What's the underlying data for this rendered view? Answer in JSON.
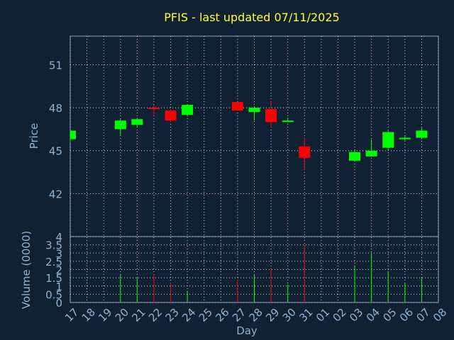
{
  "chart_data": {
    "type": "candlestick",
    "title": "PFIS - last updated 07/11/2025",
    "xlabel": "Day",
    "price_panel": {
      "ylabel": "Price",
      "ylim": [
        39,
        53
      ],
      "yticks": [
        42,
        45,
        48,
        51
      ]
    },
    "volume_panel": {
      "ylabel": "Volume (0000)",
      "ylim": [
        0,
        4
      ],
      "yticks": [
        0,
        0.5,
        1,
        1.5,
        2,
        2.5,
        3,
        3.5,
        4
      ],
      "ytick_labels": [
        "0",
        "0.5",
        "1",
        "1.5",
        "2",
        "2.5",
        "3",
        "3.5",
        "4"
      ]
    },
    "x_tick_labels": [
      "17",
      "18",
      "19",
      "20",
      "21",
      "22",
      "23",
      "24",
      "25",
      "26",
      "27",
      "28",
      "29",
      "30",
      "31",
      "01",
      "02",
      "03",
      "04",
      "05",
      "06",
      "07",
      "08"
    ],
    "colors": {
      "up": "#00ff00",
      "down": "#ff0000",
      "background": "#0f2133"
    },
    "candles": [
      {
        "day": "17",
        "open": 45.8,
        "high": 46.4,
        "low": 45.6,
        "close": 46.4,
        "volume": 0.0
      },
      {
        "day": "20",
        "open": 46.5,
        "high": 47.2,
        "low": 46.1,
        "close": 47.1,
        "volume": 1.7
      },
      {
        "day": "21",
        "open": 46.8,
        "high": 47.3,
        "low": 46.7,
        "close": 47.2,
        "volume": 1.5
      },
      {
        "day": "22",
        "open": 48.0,
        "high": 48.2,
        "low": 47.5,
        "close": 47.9,
        "volume": 1.7
      },
      {
        "day": "23",
        "open": 47.8,
        "high": 47.9,
        "low": 47.0,
        "close": 47.1,
        "volume": 1.2
      },
      {
        "day": "24",
        "open": 47.5,
        "high": 48.2,
        "low": 47.4,
        "close": 48.2,
        "volume": 0.7
      },
      {
        "day": "27",
        "open": 48.4,
        "high": 48.4,
        "low": 47.8,
        "close": 47.8,
        "volume": 1.4
      },
      {
        "day": "28",
        "open": 47.7,
        "high": 48.1,
        "low": 47.1,
        "close": 48.0,
        "volume": 1.7
      },
      {
        "day": "29",
        "open": 47.9,
        "high": 48.5,
        "low": 46.6,
        "close": 47.0,
        "volume": 2.1
      },
      {
        "day": "30",
        "open": 47.0,
        "high": 47.3,
        "low": 47.0,
        "close": 47.1,
        "volume": 1.1
      },
      {
        "day": "31",
        "open": 45.3,
        "high": 45.9,
        "low": 43.6,
        "close": 44.5,
        "volume": 3.5
      },
      {
        "day": "03",
        "open": 44.3,
        "high": 45.0,
        "low": 44.3,
        "close": 44.9,
        "volume": 2.2
      },
      {
        "day": "04",
        "open": 44.6,
        "high": 45.8,
        "low": 44.6,
        "close": 45.0,
        "volume": 3.0
      },
      {
        "day": "05",
        "open": 45.2,
        "high": 46.4,
        "low": 45.1,
        "close": 46.3,
        "volume": 1.9
      },
      {
        "day": "06",
        "open": 45.9,
        "high": 46.1,
        "low": 45.7,
        "close": 45.9,
        "volume": 1.2
      },
      {
        "day": "07",
        "open": 45.9,
        "high": 46.6,
        "low": 45.8,
        "close": 46.4,
        "volume": 1.5
      }
    ]
  }
}
